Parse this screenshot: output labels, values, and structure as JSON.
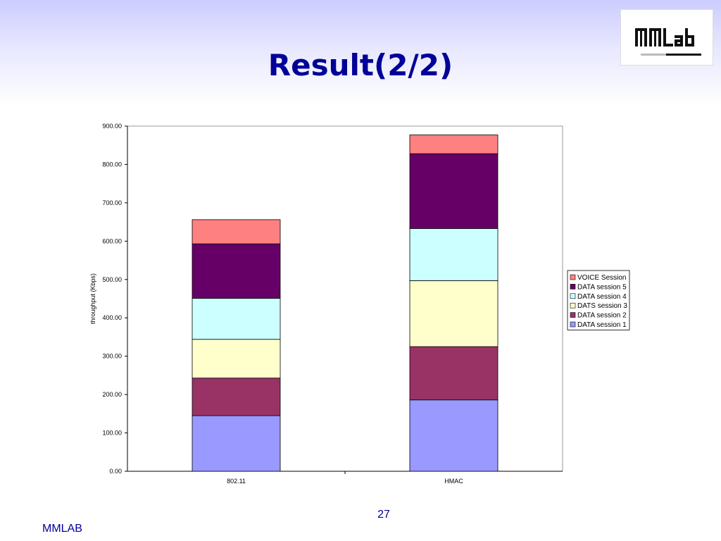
{
  "slide": {
    "title": "Result(2/2)",
    "page_number": "27",
    "footer": "MMLAB",
    "logo_text": "MMLAB"
  },
  "chart_data": {
    "type": "bar",
    "stacked": true,
    "categories": [
      "802.11",
      "HMAC"
    ],
    "ylabel": "throughput (Kbps)",
    "xlabel": "",
    "ylim": [
      0,
      900
    ],
    "yticks": [
      "0.00",
      "100.00",
      "200.00",
      "300.00",
      "400.00",
      "500.00",
      "600.00",
      "700.00",
      "800.00",
      "900.00"
    ],
    "grid": false,
    "legend_position": "right",
    "series": [
      {
        "name": "DATA session 1",
        "values": [
          145,
          186
        ],
        "color": "#9999ff"
      },
      {
        "name": "DATA session 2",
        "values": [
          98,
          139
        ],
        "color": "#993366"
      },
      {
        "name": "DATS session 3",
        "values": [
          101,
          172
        ],
        "color": "#ffffcc"
      },
      {
        "name": "DATA session 4",
        "values": [
          107,
          136
        ],
        "color": "#ccffff"
      },
      {
        "name": "DATA session 5",
        "values": [
          142,
          195
        ],
        "color": "#660066"
      },
      {
        "name": "VOICE Session",
        "values": [
          63,
          49
        ],
        "color": "#ff8080"
      }
    ]
  }
}
